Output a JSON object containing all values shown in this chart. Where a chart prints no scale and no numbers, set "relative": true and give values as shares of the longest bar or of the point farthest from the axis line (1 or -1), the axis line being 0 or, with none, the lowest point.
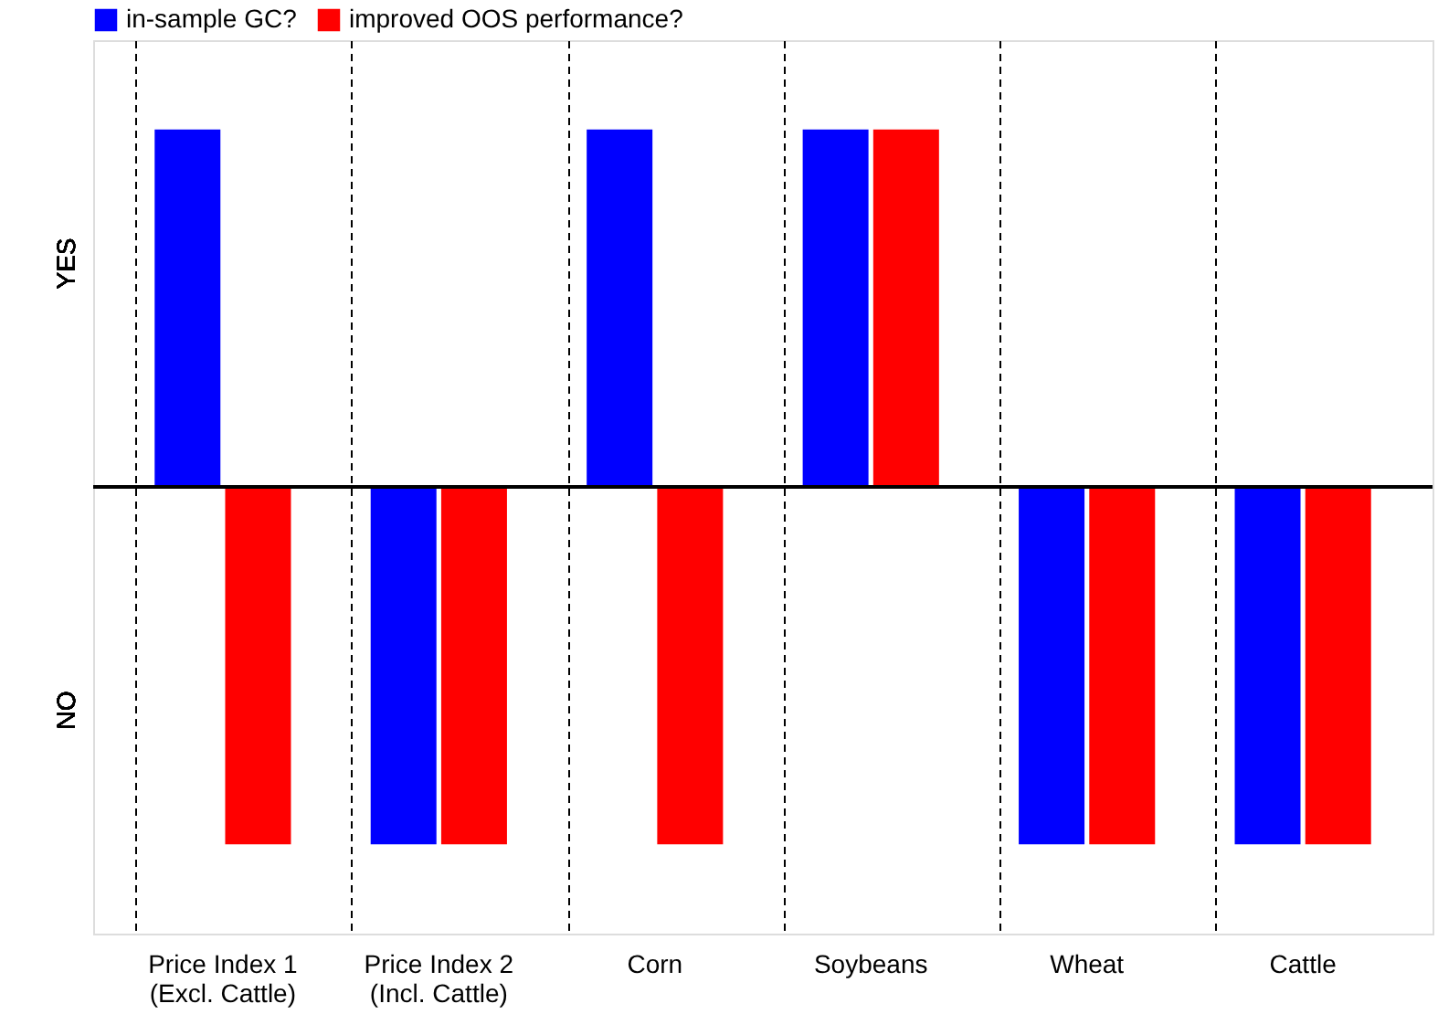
{
  "chart_data": {
    "type": "bar",
    "relative": true,
    "categories": [
      "Price Index 1\n(Excl. Cattle)",
      "Price Index 2\n(Incl. Cattle)",
      "Corn",
      "Soybeans",
      "Wheat",
      "Cattle"
    ],
    "series": [
      {
        "name": "in-sample GC?",
        "color": "#0000ff",
        "values": [
          1,
          -1,
          1,
          1,
          -1,
          -1
        ]
      },
      {
        "name": "improved OOS performance?",
        "color": "#ff0000",
        "values": [
          -1,
          -1,
          -1,
          1,
          -1,
          -1
        ]
      }
    ],
    "annotations": [
      "YES",
      "NO"
    ],
    "grid": "x",
    "legend": "top"
  }
}
